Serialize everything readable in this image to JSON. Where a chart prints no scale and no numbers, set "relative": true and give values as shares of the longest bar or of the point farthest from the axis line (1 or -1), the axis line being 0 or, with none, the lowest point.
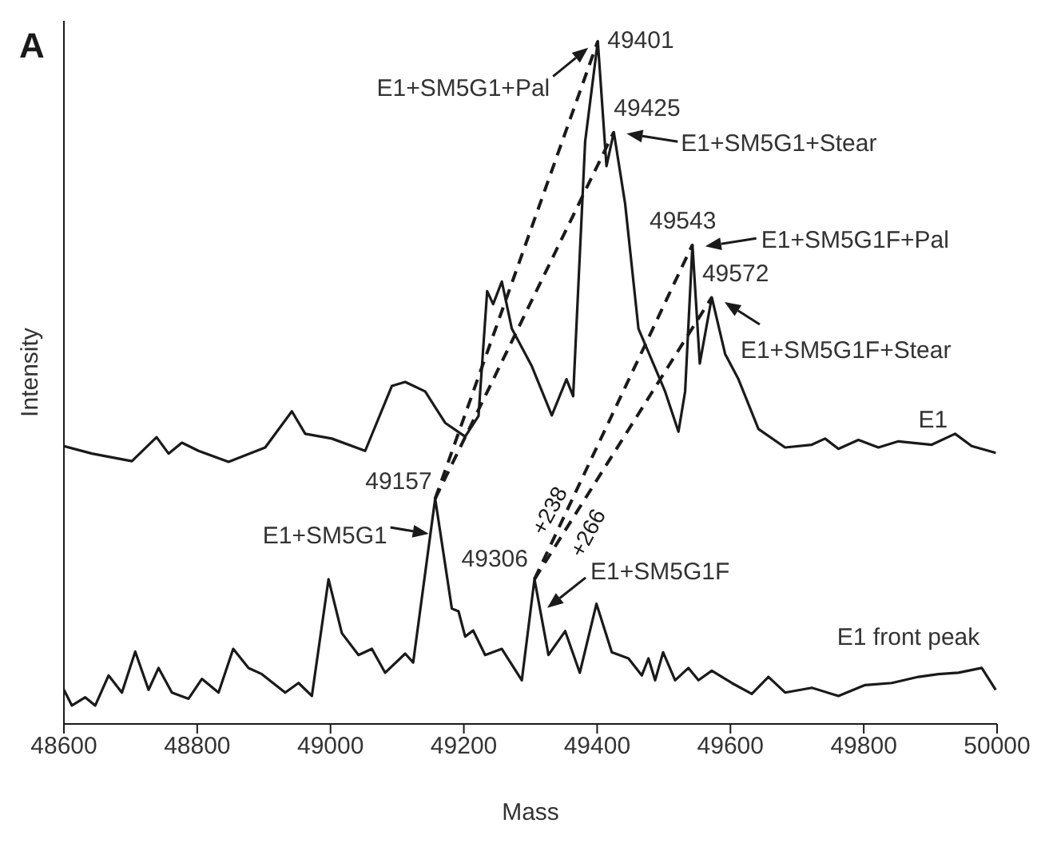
{
  "chart_data": {
    "type": "line",
    "relative": true,
    "xlabel": "Mass",
    "ylabel": "Intensity",
    "xlim": [
      48600,
      50000
    ],
    "xticks": [
      48600,
      48800,
      49000,
      49200,
      49400,
      49600,
      49800,
      50000
    ],
    "series": [
      {
        "name": "E1",
        "color": "#1a1a1a",
        "x": [
          48600,
          48642,
          48702,
          48739,
          48757,
          48777,
          48802,
          48847,
          48902,
          48942,
          48962,
          49002,
          49052,
          49092,
          49112,
          49142,
          49172,
          49202,
          49222,
          49235,
          49244,
          49257,
          49272,
          49302,
          49332,
          49354,
          49364,
          49382,
          49401,
          49414,
          49425,
          49442,
          49462,
          49502,
          49522,
          49532,
          49543,
          49554,
          49572,
          49592,
          49612,
          49642,
          49682,
          49722,
          49742,
          49762,
          49792,
          49822,
          49852,
          49902,
          49937,
          49962,
          49998
        ],
        "values": [
          0.407,
          0.396,
          0.385,
          0.42,
          0.396,
          0.412,
          0.4,
          0.384,
          0.405,
          0.458,
          0.425,
          0.418,
          0.4,
          0.495,
          0.501,
          0.487,
          0.441,
          0.421,
          0.451,
          0.634,
          0.615,
          0.648,
          0.579,
          0.524,
          0.452,
          0.505,
          0.48,
          0.853,
          1.0,
          0.817,
          0.867,
          0.762,
          0.579,
          0.487,
          0.428,
          0.487,
          0.702,
          0.528,
          0.625,
          0.542,
          0.505,
          0.432,
          0.405,
          0.409,
          0.418,
          0.403,
          0.416,
          0.405,
          0.414,
          0.409,
          0.425,
          0.407,
          0.397
        ]
      },
      {
        "name": "E1 front peak",
        "color": "#1a1a1a",
        "x": [
          48600,
          48612,
          48632,
          48647,
          48667,
          48687,
          48707,
          48727,
          48742,
          48762,
          48787,
          48807,
          48832,
          48854,
          48877,
          48897,
          48932,
          48952,
          48972,
          48997,
          49017,
          49042,
          49062,
          49082,
          49112,
          49124,
          49157,
          49182,
          49192,
          49202,
          49214,
          49232,
          49257,
          49287,
          49306,
          49327,
          49352,
          49374,
          49399,
          49422,
          49447,
          49467,
          49477,
          49487,
          49499,
          49517,
          49537,
          49552,
          49572,
          49602,
          49632,
          49657,
          49682,
          49722,
          49762,
          49802,
          49842,
          49882,
          49912,
          49942,
          49977,
          49998
        ],
        "values": [
          0.05,
          0.027,
          0.039,
          0.027,
          0.071,
          0.046,
          0.106,
          0.05,
          0.082,
          0.046,
          0.037,
          0.066,
          0.046,
          0.11,
          0.082,
          0.073,
          0.046,
          0.06,
          0.041,
          0.212,
          0.133,
          0.101,
          0.11,
          0.075,
          0.103,
          0.09,
          0.33,
          0.169,
          0.165,
          0.128,
          0.137,
          0.101,
          0.11,
          0.064,
          0.212,
          0.101,
          0.136,
          0.075,
          0.176,
          0.105,
          0.096,
          0.071,
          0.096,
          0.064,
          0.105,
          0.064,
          0.082,
          0.064,
          0.078,
          0.06,
          0.044,
          0.069,
          0.046,
          0.053,
          0.041,
          0.057,
          0.06,
          0.069,
          0.073,
          0.075,
          0.082,
          0.05
        ]
      },
      {
        "color": "#1a1a1a",
        "line_style": "dashed",
        "x": [
          49157,
          49401
        ],
        "values": [
          0.33,
          1.0
        ]
      },
      {
        "color": "#1a1a1a",
        "line_style": "dashed",
        "x": [
          49157,
          49425
        ],
        "values": [
          0.33,
          0.867
        ]
      },
      {
        "color": "#1a1a1a",
        "line_style": "dashed",
        "x": [
          49306,
          49543
        ],
        "values": [
          0.212,
          0.702
        ]
      },
      {
        "color": "#1a1a1a",
        "line_style": "dashed",
        "x": [
          49306,
          49572
        ],
        "values": [
          0.212,
          0.625
        ]
      }
    ],
    "annotations": [
      "A",
      {
        "text": "49401",
        "x": 49401,
        "y": 1.0
      },
      {
        "text": "E1+SM5G1+Pal",
        "x": 49401,
        "y": 1.0
      },
      {
        "text": "49425",
        "x": 49425,
        "y": 0.867
      },
      {
        "text": "E1+SM5G1+Stear",
        "x": 49425,
        "y": 0.867
      },
      {
        "text": "49543",
        "x": 49543,
        "y": 0.702
      },
      {
        "text": "E1+SM5G1F+Pal",
        "x": 49543,
        "y": 0.702
      },
      {
        "text": "49572",
        "x": 49572,
        "y": 0.625
      },
      {
        "text": "E1+SM5G1F+Stear",
        "x": 49572,
        "y": 0.625
      },
      {
        "text": "49157",
        "x": 49157,
        "y": 0.33
      },
      {
        "text": "E1+SM5G1",
        "x": 49157,
        "y": 0.33
      },
      {
        "text": "49306",
        "x": 49306,
        "y": 0.212
      },
      {
        "text": "E1+SM5G1F",
        "x": 49306,
        "y": 0.212
      },
      "+238",
      "+266"
    ]
  }
}
